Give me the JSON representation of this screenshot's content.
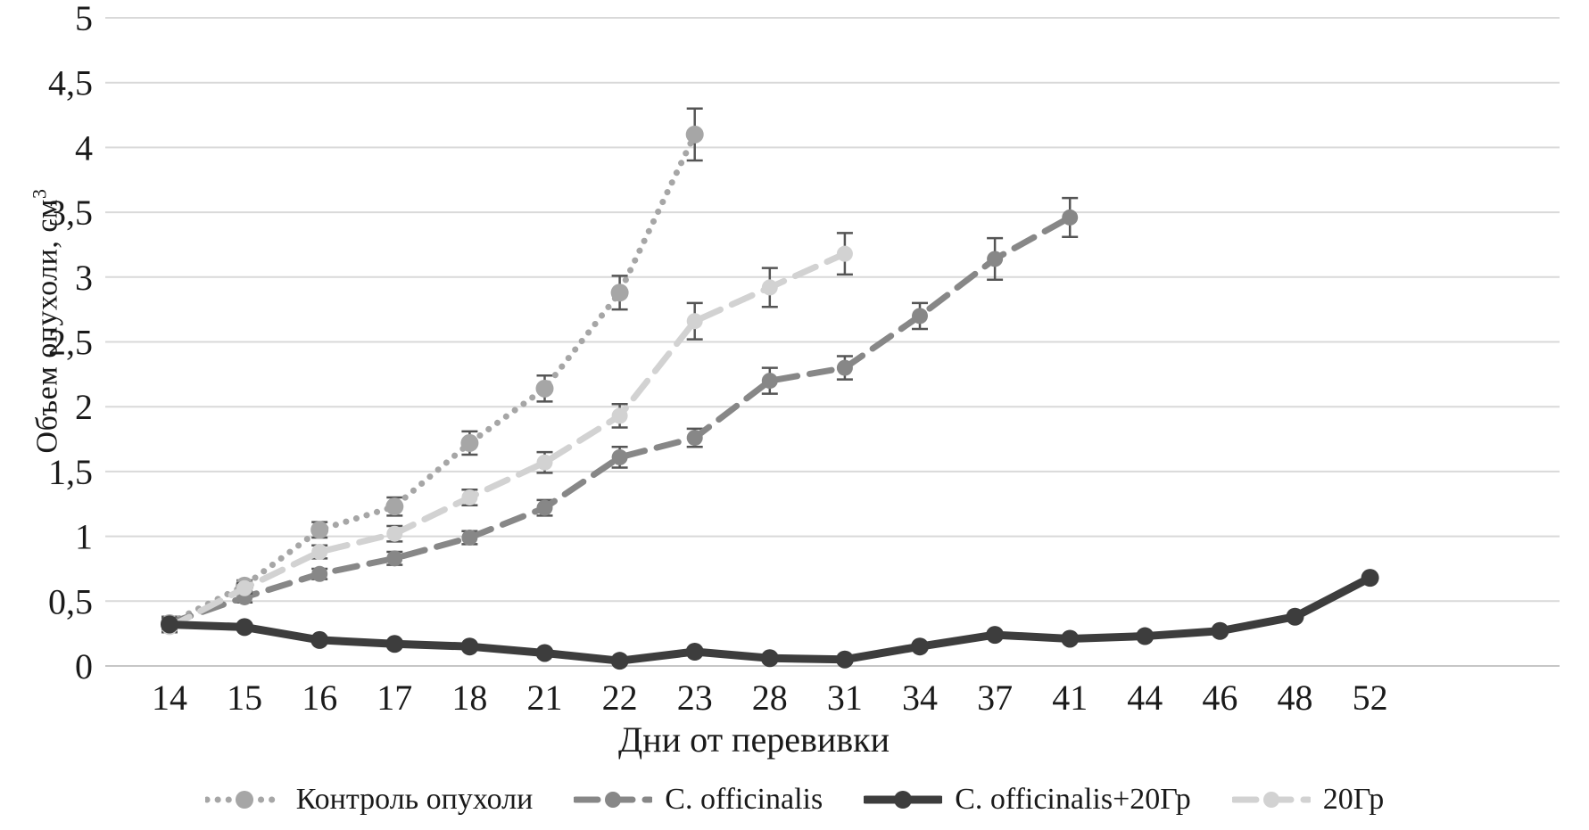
{
  "chart_data": {
    "type": "line",
    "title": "",
    "xlabel": "Дни от перевивки",
    "ylabel": "Объем опухоли, см",
    "ylabel_sup": "3",
    "ylim": [
      0,
      5
    ],
    "y_step": 0.5,
    "grid": "horizontal",
    "legend_position": "bottom",
    "background": "#ffffff",
    "gridline_color": "#d9d9d9",
    "baseline_color": "#c6c6c6",
    "errorbar_color": "#555555",
    "text_color": "#1a1a1a",
    "y_ticklabels": [
      "0",
      "0,5",
      "1",
      "1,5",
      "2",
      "2,5",
      "3",
      "3,5",
      "4",
      "4,5",
      "5"
    ],
    "x_ticklabels": [
      "14",
      "15",
      "16",
      "17",
      "18",
      "21",
      "22",
      "23",
      "28",
      "31",
      "34",
      "37",
      "41",
      "44",
      "46",
      "48",
      "52"
    ],
    "categories": [
      14,
      15,
      16,
      17,
      18,
      21,
      22,
      23,
      28,
      31,
      34,
      37,
      41,
      44,
      46,
      48,
      52
    ],
    "series": [
      {
        "name": "Контроль опухоли",
        "style": "dotted",
        "color": "#a6a6a6",
        "values": [
          0.33,
          0.62,
          1.05,
          1.23,
          1.72,
          2.14,
          2.88,
          4.1
        ],
        "errors": [
          0.05,
          0.04,
          0.06,
          0.07,
          0.09,
          0.1,
          0.13,
          0.2
        ]
      },
      {
        "name": "C. officinalis",
        "style": "dashed",
        "color": "#878787",
        "values": [
          0.33,
          0.53,
          0.71,
          0.83,
          0.99,
          1.22,
          1.61,
          1.76,
          2.2,
          2.3,
          2.7,
          3.14,
          3.46
        ],
        "errors": [
          0.04,
          0.04,
          0.04,
          0.05,
          0.05,
          0.06,
          0.08,
          0.07,
          0.1,
          0.09,
          0.1,
          0.16,
          0.15
        ]
      },
      {
        "name": "C. officinalis+20Гр",
        "style": "solid",
        "color": "#3d3d3d",
        "values": [
          0.32,
          0.3,
          0.2,
          0.17,
          0.15,
          0.1,
          0.04,
          0.11,
          0.06,
          0.05,
          0.15,
          0.24,
          0.21,
          0.23,
          0.27,
          0.38,
          0.68
        ],
        "errors": [
          0,
          0,
          0,
          0,
          0,
          0,
          0,
          0,
          0,
          0,
          0,
          0,
          0,
          0,
          0,
          0,
          0
        ]
      },
      {
        "name": "20Гр",
        "style": "dashed",
        "color": "#d2d2d2",
        "values": [
          0.3,
          0.6,
          0.88,
          1.02,
          1.3,
          1.57,
          1.93,
          2.66,
          2.92,
          3.18
        ],
        "errors": [
          0.04,
          0.04,
          0.05,
          0.06,
          0.06,
          0.08,
          0.09,
          0.14,
          0.15,
          0.16
        ]
      }
    ]
  }
}
